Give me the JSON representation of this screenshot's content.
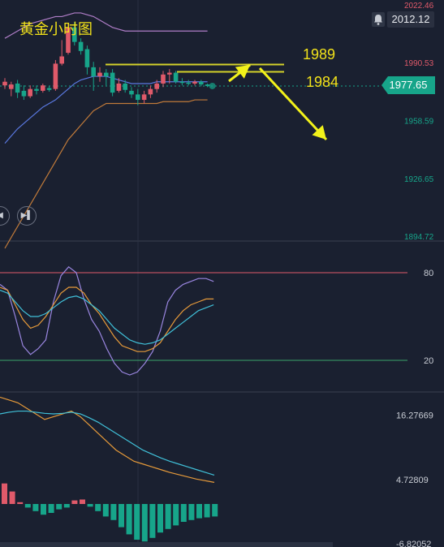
{
  "header": {
    "title": "黄金小时图",
    "last_price": "2012.12",
    "current_price": "1977.65",
    "bell_icon": "bell-icon"
  },
  "annotations": {
    "level_high": "1989",
    "level_low": "1984"
  },
  "chart_data": [
    {
      "type": "candlestick",
      "panel": "price",
      "y_ticks": [
        {
          "label": "2022.46",
          "value": 2022.46,
          "color": "#e05a6a"
        },
        {
          "label": "1990.53",
          "value": 1990.53,
          "color": "#e05a6a"
        },
        {
          "label": "1958.59",
          "value": 1958.59,
          "color": "#17a58a"
        },
        {
          "label": "1926.65",
          "value": 1926.65,
          "color": "#17a58a"
        },
        {
          "label": "1894.72",
          "value": 1894.72,
          "color": "#17a58a"
        }
      ],
      "ylim": [
        1894.72,
        2022.46
      ],
      "candles": [
        {
          "o": 1978.0,
          "c": 1980.0,
          "h": 1982.0,
          "l": 1976.0
        },
        {
          "o": 1976.0,
          "c": 1978.5,
          "h": 1980.0,
          "l": 1972.0
        },
        {
          "o": 1979.0,
          "c": 1974.0,
          "h": 1981.0,
          "l": 1971.0
        },
        {
          "o": 1975.0,
          "c": 1972.0,
          "h": 1978.0,
          "l": 1970.0
        },
        {
          "o": 1972.0,
          "c": 1976.0,
          "h": 1978.0,
          "l": 1971.0
        },
        {
          "o": 1976.0,
          "c": 1975.0,
          "h": 1978.0,
          "l": 1973.0
        },
        {
          "o": 1975.0,
          "c": 1978.0,
          "h": 1979.0,
          "l": 1974.0
        },
        {
          "o": 1976.5,
          "c": 1975.5,
          "h": 1977.5,
          "l": 1974.5
        },
        {
          "o": 1976.0,
          "c": 1990.0,
          "h": 1992.0,
          "l": 1975.0
        },
        {
          "o": 1990.0,
          "c": 1994.0,
          "h": 2003.0,
          "l": 1989.0
        },
        {
          "o": 1996.0,
          "c": 2010.0,
          "h": 2012.0,
          "l": 1995.0
        },
        {
          "o": 2010.0,
          "c": 2002.0,
          "h": 2013.0,
          "l": 2000.0
        },
        {
          "o": 2002.0,
          "c": 1997.0,
          "h": 2004.0,
          "l": 1995.0
        },
        {
          "o": 1998.0,
          "c": 1988.0,
          "h": 2000.0,
          "l": 1984.0
        },
        {
          "o": 1988.0,
          "c": 1983.0,
          "h": 1991.0,
          "l": 1975.0
        },
        {
          "o": 1983.0,
          "c": 1985.0,
          "h": 1988.0,
          "l": 1980.0
        },
        {
          "o": 1985.0,
          "c": 1983.0,
          "h": 1987.0,
          "l": 1978.0
        },
        {
          "o": 1985.0,
          "c": 1974.0,
          "h": 1987.0,
          "l": 1972.0
        },
        {
          "o": 1975.0,
          "c": 1979.0,
          "h": 1982.0,
          "l": 1974.0
        },
        {
          "o": 1979.0,
          "c": 1975.5,
          "h": 1981.0,
          "l": 1974.0
        },
        {
          "o": 1975.0,
          "c": 1973.0,
          "h": 1977.0,
          "l": 1971.0
        },
        {
          "o": 1973.0,
          "c": 1970.0,
          "h": 1976.0,
          "l": 1967.0
        },
        {
          "o": 1970.0,
          "c": 1973.0,
          "h": 1975.0,
          "l": 1968.0
        },
        {
          "o": 1973.0,
          "c": 1976.0,
          "h": 1978.0,
          "l": 1971.0
        },
        {
          "o": 1976.0,
          "c": 1979.0,
          "h": 1981.0,
          "l": 1974.0
        },
        {
          "o": 1979.0,
          "c": 1984.0,
          "h": 1986.0,
          "l": 1977.0
        },
        {
          "o": 1984.0,
          "c": 1985.0,
          "h": 1987.0,
          "l": 1979.0
        },
        {
          "o": 1985.0,
          "c": 1980.0,
          "h": 1986.0,
          "l": 1979.0
        },
        {
          "o": 1980.0,
          "c": 1979.5,
          "h": 1982.0,
          "l": 1978.0
        },
        {
          "o": 1979.5,
          "c": 1979.0,
          "h": 1981.0,
          "l": 1978.0
        },
        {
          "o": 1979.0,
          "c": 1980.0,
          "h": 1981.0,
          "l": 1978.0
        },
        {
          "o": 1980.0,
          "c": 1978.5,
          "h": 1981.0,
          "l": 1977.5
        },
        {
          "o": 1978.5,
          "c": 1977.65,
          "h": 1979.0,
          "l": 1977.0
        }
      ],
      "bands": {
        "upper": [
          2004,
          2006,
          2008,
          2010,
          2012,
          2013,
          2014,
          2015,
          2016,
          2016,
          2017,
          2018,
          2018,
          2017,
          2016,
          2014,
          2012,
          2010,
          2009,
          2008,
          2008,
          2008,
          2008,
          2008,
          2008,
          2008,
          2008,
          2008,
          2008,
          2008,
          2008,
          2008,
          2008
        ],
        "middle": [
          1946,
          1950,
          1954,
          1957,
          1960,
          1963,
          1966,
          1968,
          1970,
          1973,
          1976,
          1979,
          1981,
          1982,
          1983,
          1983,
          1983,
          1982,
          1981,
          1980,
          1979,
          1979,
          1979,
          1979,
          1980,
          1980,
          1980,
          1980,
          1980,
          1980,
          1980,
          1980,
          1980
        ],
        "lower": [
          1888,
          1894,
          1900,
          1906,
          1912,
          1918,
          1924,
          1930,
          1936,
          1942,
          1948,
          1952,
          1956,
          1960,
          1964,
          1966,
          1968,
          1968,
          1968,
          1968,
          1968,
          1968,
          1968,
          1968,
          1968,
          1969,
          1969,
          1969,
          1969,
          1969,
          1970,
          1970,
          1970
        ]
      },
      "levels": [
        {
          "name": "1989",
          "value": 1989.5,
          "color": "#d4d22a"
        },
        {
          "name": "1984",
          "value": 1985.5,
          "color": "#d4d22a"
        }
      ],
      "current": 1977.65
    },
    {
      "type": "line",
      "panel": "kdj",
      "ylim": [
        0,
        100
      ],
      "levels": [
        {
          "label": "80",
          "value": 80,
          "color": "#e05a6a"
        },
        {
          "label": "20",
          "value": 20,
          "color": "#3aa36a"
        }
      ],
      "series": [
        {
          "color": "#9a86e0",
          "values": [
            72,
            68,
            50,
            30,
            24,
            28,
            34,
            60,
            78,
            84,
            80,
            62,
            48,
            40,
            28,
            18,
            12,
            10,
            12,
            18,
            26,
            40,
            60,
            68,
            72,
            74,
            76,
            76,
            74
          ]
        },
        {
          "color": "#e69a3a",
          "values": [
            70,
            68,
            58,
            48,
            42,
            44,
            50,
            58,
            66,
            70,
            70,
            66,
            58,
            52,
            44,
            36,
            30,
            28,
            26,
            26,
            28,
            32,
            40,
            48,
            54,
            58,
            60,
            62,
            62
          ]
        },
        {
          "color": "#40c0d8",
          "values": [
            68,
            66,
            60,
            54,
            50,
            50,
            52,
            56,
            60,
            63,
            64,
            62,
            58,
            54,
            48,
            42,
            38,
            34,
            32,
            31,
            32,
            34,
            38,
            42,
            46,
            50,
            54,
            56,
            58
          ]
        }
      ]
    },
    {
      "type": "bar_line",
      "panel": "macd",
      "y_ticks": [
        {
          "label": "16.27669",
          "value": 16.27669
        },
        {
          "label": "4.72809",
          "value": 4.72809
        },
        {
          "label": "-6.82052",
          "value": -6.82052
        }
      ],
      "ylim": [
        -6.82052,
        20
      ],
      "histogram": [
        2.3,
        1.4,
        0.2,
        -0.4,
        -0.8,
        -1.2,
        -1.0,
        -0.6,
        -0.4,
        0.4,
        0.5,
        -0.3,
        -0.8,
        -1.4,
        -1.8,
        -2.6,
        -3.4,
        -4.0,
        -4.2,
        -3.8,
        -3.2,
        -2.8,
        -2.4,
        -2.0,
        -1.8,
        -1.6,
        -1.5,
        -1.4
      ],
      "series": [
        {
          "color": "#e69a3a",
          "values": [
            19.5,
            19,
            18.5,
            17.5,
            16.5,
            15.5,
            16,
            16.5,
            17,
            16,
            14.5,
            13,
            11.5,
            10,
            9,
            8,
            7.5,
            7,
            6.5,
            6,
            5.6,
            5.2,
            4.8,
            4.5,
            4.2
          ]
        },
        {
          "color": "#40c0d8",
          "values": [
            16.5,
            16.8,
            17,
            17,
            16.8,
            16.6,
            16.5,
            16.6,
            16.8,
            16.5,
            15.8,
            15,
            14,
            13,
            12,
            11,
            10,
            9.3,
            8.6,
            8,
            7.5,
            7,
            6.5,
            6,
            5.5
          ]
        }
      ]
    }
  ]
}
